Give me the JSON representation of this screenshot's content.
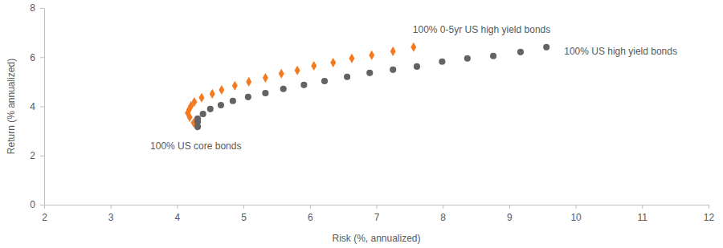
{
  "chart_data": {
    "type": "scatter",
    "x_label": "Risk (%, annualized)",
    "y_label": "Return (% annualized)",
    "xlim": [
      2,
      12
    ],
    "xticks": [
      2,
      3,
      4,
      5,
      6,
      7,
      8,
      9,
      10,
      11,
      12
    ],
    "ylim": [
      0,
      8
    ],
    "yticks": [
      0,
      2,
      4,
      6,
      8
    ],
    "grid": false,
    "annotations": [
      "100% US core bonds"
    ],
    "series": [
      {
        "name": "100% 0-5yr US high yield bonds",
        "color": "#f47a20",
        "marker": "diamond",
        "x": [
          4.3,
          4.25,
          4.19,
          4.16,
          4.18,
          4.21,
          4.26,
          4.37,
          4.53,
          4.67,
          4.87,
          5.08,
          5.33,
          5.57,
          5.81,
          6.06,
          6.35,
          6.63,
          6.93,
          7.25,
          7.56
        ],
        "values": [
          3.2,
          3.33,
          3.56,
          3.73,
          3.86,
          4.02,
          4.18,
          4.35,
          4.51,
          4.67,
          4.84,
          5.0,
          5.16,
          5.33,
          5.46,
          5.65,
          5.78,
          5.95,
          6.08,
          6.24,
          6.41
        ]
      },
      {
        "name": "100% US high yield bonds",
        "color": "#636363",
        "marker": "circle",
        "x": [
          4.31,
          4.31,
          4.31,
          4.39,
          4.5,
          4.66,
          4.84,
          5.07,
          5.33,
          5.6,
          5.91,
          6.22,
          6.56,
          6.9,
          7.25,
          7.61,
          7.99,
          8.37,
          8.76,
          9.17,
          9.56
        ],
        "values": [
          3.17,
          3.37,
          3.5,
          3.69,
          3.89,
          4.05,
          4.22,
          4.38,
          4.54,
          4.71,
          4.87,
          5.03,
          5.2,
          5.36,
          5.49,
          5.62,
          5.82,
          5.95,
          6.05,
          6.21,
          6.41
        ]
      }
    ]
  }
}
